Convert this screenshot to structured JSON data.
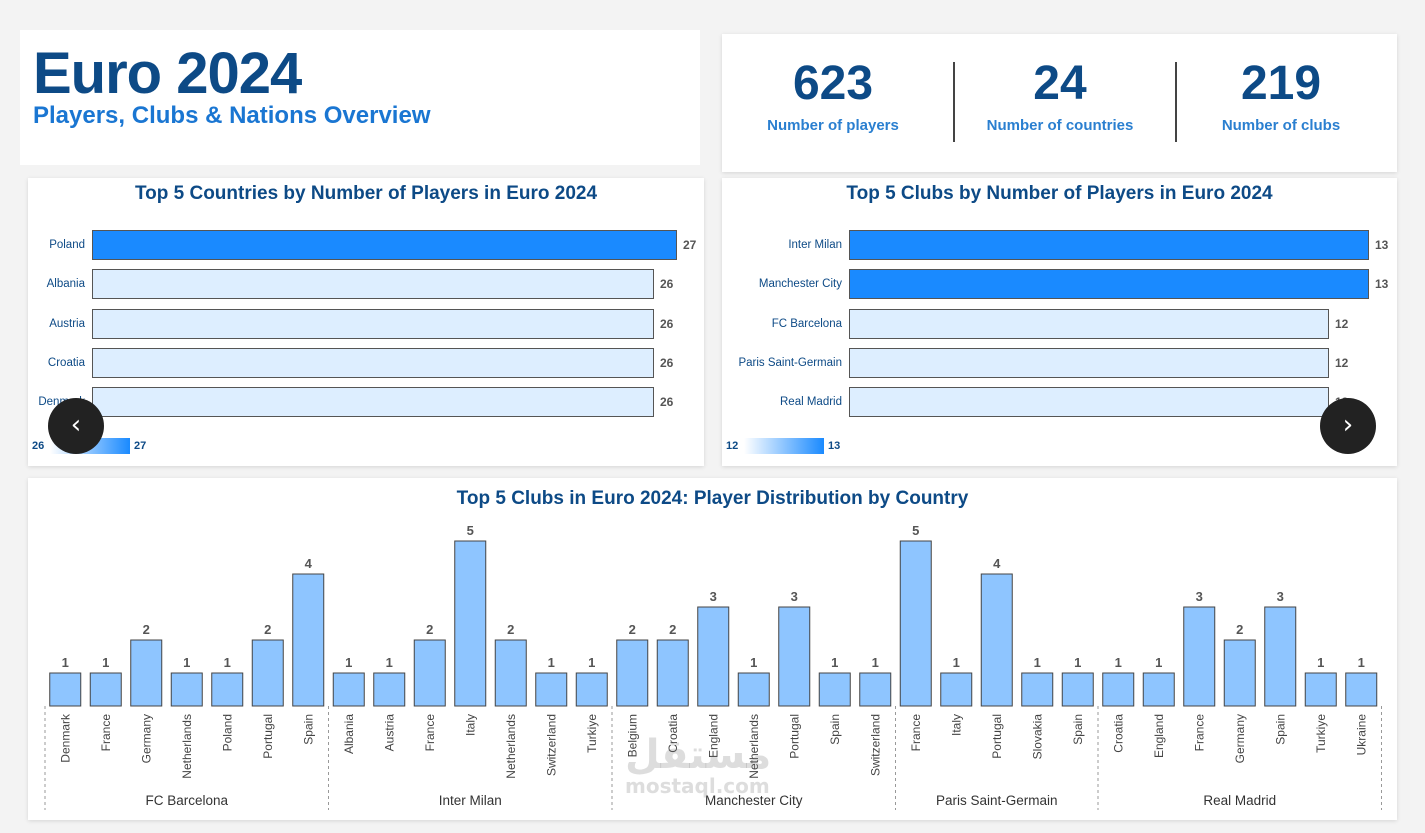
{
  "header": {
    "title": "Euro 2024",
    "subtitle": "Players, Clubs & Nations Overview"
  },
  "kpis": [
    {
      "value": "623",
      "label": "Number of players"
    },
    {
      "value": "24",
      "label": "Number of countries"
    },
    {
      "value": "219",
      "label": "Number of clubs"
    }
  ],
  "colors": {
    "title": "#0d4a86",
    "accent": "#1a8aff",
    "bar_light": "#ddeeff",
    "column": "#8ec5ff"
  },
  "nav": {
    "prev_icon": "chevron-left-icon",
    "next_icon": "chevron-right-icon"
  },
  "watermark": {
    "arabic": "مستقل",
    "latin": "mostaql.com"
  },
  "chart_data": [
    {
      "type": "bar",
      "orientation": "horizontal",
      "title": "Top 5 Countries by Number of Players in Euro 2024",
      "categories": [
        "Poland",
        "Albania",
        "Austria",
        "Croatia",
        "Denmark"
      ],
      "values": [
        27,
        26,
        26,
        26,
        26
      ],
      "color_scale": {
        "min": 26,
        "max": 27
      }
    },
    {
      "type": "bar",
      "orientation": "horizontal",
      "title": "Top 5 Clubs by Number of Players in Euro 2024",
      "categories": [
        "Inter Milan",
        "Manchester City",
        "FC Barcelona",
        "Paris Saint-Germain",
        "Real Madrid"
      ],
      "values": [
        13,
        13,
        12,
        12,
        12
      ],
      "color_scale": {
        "min": 12,
        "max": 13
      }
    },
    {
      "type": "bar",
      "title": "Top 5 Clubs in Euro 2024: Player Distribution by Country",
      "ylim": [
        0,
        5
      ],
      "groups": [
        {
          "name": "FC Barcelona",
          "categories": [
            "Denmark",
            "France",
            "Germany",
            "Netherlands",
            "Poland",
            "Portugal",
            "Spain"
          ],
          "values": [
            1,
            1,
            2,
            1,
            1,
            2,
            4
          ]
        },
        {
          "name": "Inter Milan",
          "categories": [
            "Albania",
            "Austria",
            "France",
            "Italy",
            "Netherlands",
            "Switzerland",
            "Turkiye"
          ],
          "values": [
            1,
            1,
            2,
            5,
            2,
            1,
            1
          ]
        },
        {
          "name": "Manchester City",
          "categories": [
            "Belgium",
            "Croatia",
            "England",
            "Netherlands",
            "Portugal",
            "Spain",
            "Switzerland"
          ],
          "values": [
            2,
            2,
            3,
            1,
            3,
            1,
            1
          ]
        },
        {
          "name": "Paris Saint-Germain",
          "categories": [
            "France",
            "Italy",
            "Portugal",
            "Slovakia",
            "Spain"
          ],
          "values": [
            5,
            1,
            4,
            1,
            1
          ]
        },
        {
          "name": "Real Madrid",
          "categories": [
            "Croatia",
            "England",
            "France",
            "Germany",
            "Spain",
            "Turkiye",
            "Ukraine"
          ],
          "values": [
            1,
            1,
            3,
            2,
            3,
            1,
            1
          ]
        }
      ]
    }
  ]
}
